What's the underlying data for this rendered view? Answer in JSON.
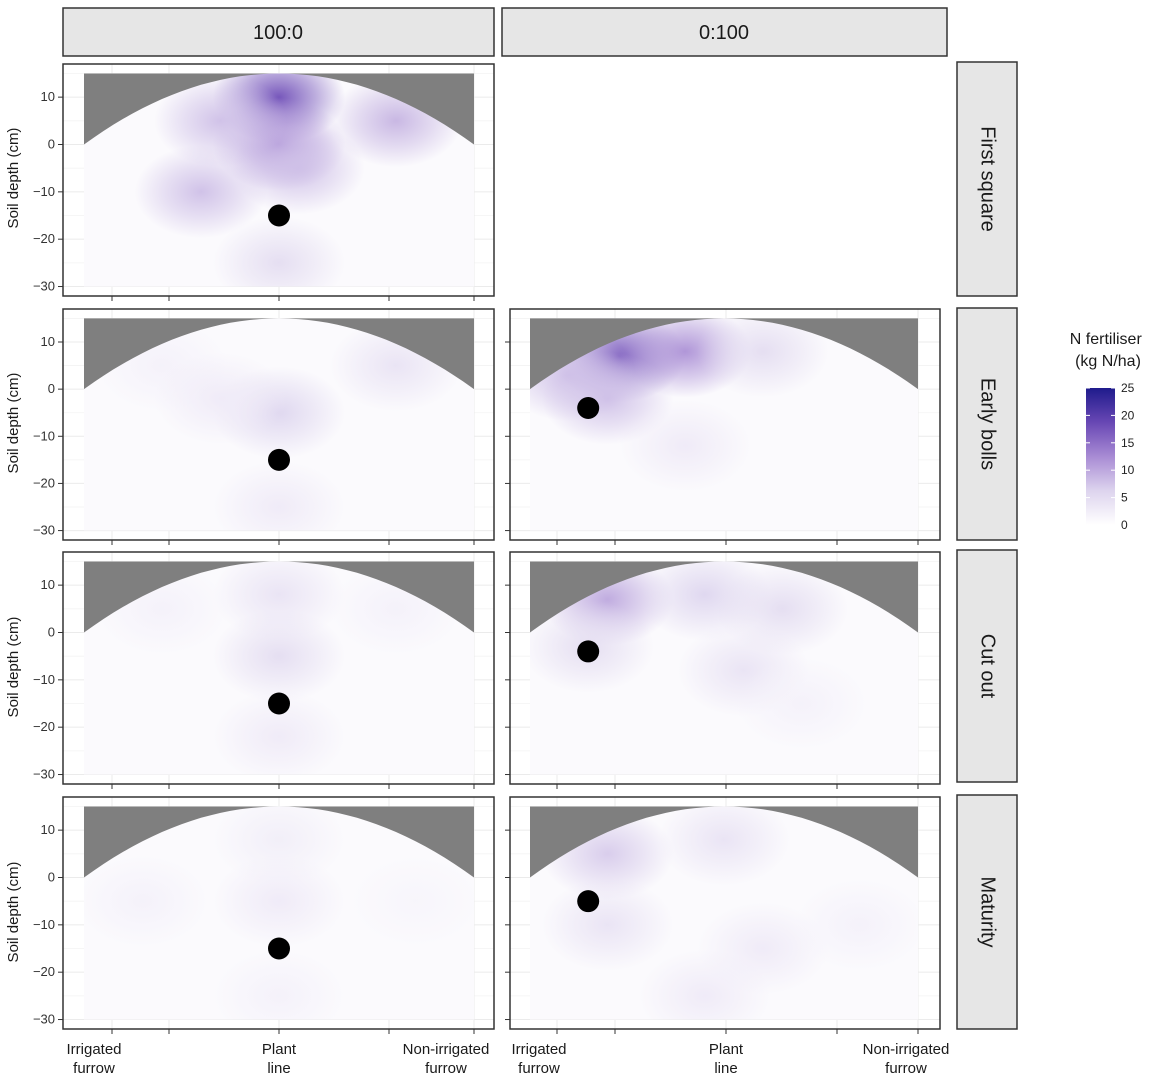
{
  "chart_data": {
    "type": "heatmap",
    "title": "",
    "ylabel": "Soil depth (cm)",
    "ylim": [
      -32,
      17
    ],
    "yticks": [
      10,
      0,
      -10,
      -20,
      -30
    ],
    "xticks": [
      "Irrigated furrow",
      "Plant line",
      "Non-irrigated furrow"
    ],
    "column_facets": [
      "100:0",
      "0:100"
    ],
    "row_facets": [
      "First square",
      "Early bolls",
      "Cut out",
      "Maturity"
    ],
    "legend": {
      "title": "N fertiliser (kg N/ha)",
      "range": [
        0,
        25
      ],
      "ticks": [
        25,
        20,
        15,
        10,
        5,
        0
      ],
      "low_color": "#ffffff",
      "high_color": "#1f1b8c",
      "placement": "right"
    },
    "colors": {
      "soil_mask": "#7f7f7f",
      "dripper": "#000000",
      "strip_bg": "#e6e6e6",
      "grid": "#ebebeb"
    },
    "panels": [
      {
        "id": "first-square-100-0",
        "row": "First square",
        "col": "100:0",
        "dripper": {
          "x": 0,
          "y": -15
        },
        "hotspots": [
          {
            "x": 0,
            "y": 10,
            "value": 18
          },
          {
            "x": 0,
            "y": 0,
            "value": 12
          },
          {
            "x": -0.2,
            "y": -10,
            "value": 8
          },
          {
            "x": 0.3,
            "y": 5,
            "value": 9
          },
          {
            "x": -0.15,
            "y": 5,
            "value": 8
          },
          {
            "x": 0,
            "y": -25,
            "value": 5
          },
          {
            "x": 0.05,
            "y": -5,
            "value": 8
          }
        ]
      },
      {
        "id": "early-bolls-100-0",
        "row": "Early bolls",
        "col": "100:0",
        "dripper": {
          "x": 0,
          "y": -15
        },
        "hotspots": [
          {
            "x": 0,
            "y": -5,
            "value": 6
          },
          {
            "x": 0.3,
            "y": 5,
            "value": 4
          },
          {
            "x": -0.3,
            "y": 5,
            "value": 2
          },
          {
            "x": 0,
            "y": -25,
            "value": 3
          },
          {
            "x": -0.15,
            "y": -2,
            "value": 3
          }
        ]
      },
      {
        "id": "early-bolls-0-100",
        "row": "Early bolls",
        "col": "0:100",
        "dripper": {
          "x": -0.35,
          "y": -4
        },
        "hotspots": [
          {
            "x": -0.27,
            "y": 7,
            "value": 17
          },
          {
            "x": -0.1,
            "y": 8,
            "value": 12
          },
          {
            "x": -0.4,
            "y": 3,
            "value": 8
          },
          {
            "x": -0.3,
            "y": -2,
            "value": 8
          },
          {
            "x": 0.1,
            "y": 8,
            "value": 5
          },
          {
            "x": -0.1,
            "y": -12,
            "value": 3
          }
        ]
      },
      {
        "id": "cut-out-100-0",
        "row": "Cut out",
        "col": "100:0",
        "dripper": {
          "x": 0,
          "y": -15
        },
        "hotspots": [
          {
            "x": 0,
            "y": -5,
            "value": 5
          },
          {
            "x": 0,
            "y": 8,
            "value": 4
          },
          {
            "x": 0,
            "y": -22,
            "value": 3
          },
          {
            "x": -0.3,
            "y": 5,
            "value": 2
          },
          {
            "x": 0.3,
            "y": 5,
            "value": 2
          }
        ]
      },
      {
        "id": "cut-out-0-100",
        "row": "Cut out",
        "col": "0:100",
        "dripper": {
          "x": -0.35,
          "y": -4
        },
        "hotspots": [
          {
            "x": -0.3,
            "y": 7,
            "value": 10
          },
          {
            "x": -0.05,
            "y": 8,
            "value": 6
          },
          {
            "x": 0.15,
            "y": 5,
            "value": 5
          },
          {
            "x": -0.35,
            "y": -3,
            "value": 5
          },
          {
            "x": 0.05,
            "y": -8,
            "value": 4
          },
          {
            "x": 0.2,
            "y": -15,
            "value": 2
          }
        ]
      },
      {
        "id": "maturity-100-0",
        "row": "Maturity",
        "col": "100:0",
        "dripper": {
          "x": 0,
          "y": -15
        },
        "hotspots": [
          {
            "x": 0,
            "y": -5,
            "value": 3
          },
          {
            "x": 0,
            "y": 8,
            "value": 2.5
          },
          {
            "x": -0.35,
            "y": -5,
            "value": 2
          },
          {
            "x": 0.35,
            "y": -5,
            "value": 1.5
          },
          {
            "x": 0,
            "y": -25,
            "value": 2
          }
        ]
      },
      {
        "id": "maturity-0-100",
        "row": "Maturity",
        "col": "0:100",
        "dripper": {
          "x": -0.35,
          "y": -5
        },
        "hotspots": [
          {
            "x": -0.3,
            "y": 5,
            "value": 7
          },
          {
            "x": 0,
            "y": 8,
            "value": 4
          },
          {
            "x": -0.3,
            "y": -10,
            "value": 4
          },
          {
            "x": 0.1,
            "y": -15,
            "value": 3
          },
          {
            "x": -0.05,
            "y": -25,
            "value": 3
          },
          {
            "x": 0.35,
            "y": -10,
            "value": 2
          }
        ]
      }
    ]
  }
}
